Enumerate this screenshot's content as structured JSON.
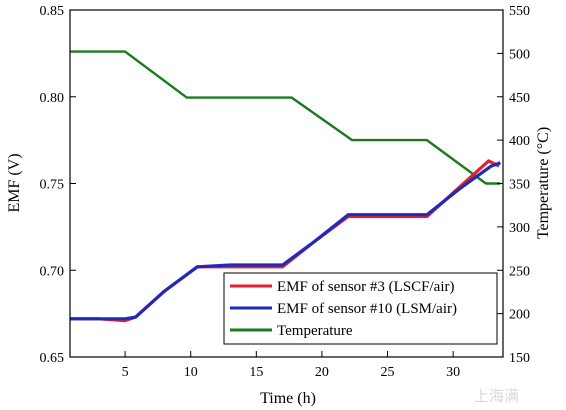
{
  "chart_data": {
    "type": "line",
    "title": "",
    "xlabel": "Time (h)",
    "ylabel": "EMF (V)",
    "y2label": "Temperature (°C)",
    "xlim": [
      0.8,
      33.8
    ],
    "ylim": [
      0.65,
      0.85
    ],
    "y2lim": [
      150,
      550
    ],
    "xticks": [
      5,
      10,
      15,
      20,
      25,
      30
    ],
    "yticks": [
      0.65,
      0.7,
      0.75,
      0.8,
      0.85
    ],
    "y2ticks": [
      150,
      200,
      250,
      300,
      350,
      400,
      450,
      500,
      550
    ],
    "grid": false,
    "legend_position": "bottom-right",
    "series": [
      {
        "name": "EMF of sensor #3 (LSCF/air)",
        "color": "#e8202a",
        "axis": "left",
        "x": [
          0.8,
          3.0,
          5.0,
          5.8,
          8.0,
          10.5,
          13.0,
          15.5,
          17.0,
          19.5,
          22.0,
          24.0,
          26.0,
          28.0,
          30.5,
          32.7,
          33.5
        ],
        "y": [
          0.672,
          0.672,
          0.671,
          0.673,
          0.688,
          0.702,
          0.702,
          0.702,
          0.702,
          0.717,
          0.731,
          0.731,
          0.731,
          0.731,
          0.748,
          0.763,
          0.76
        ]
      },
      {
        "name": "EMF of sensor #10 (LSM/air)",
        "color": "#1f2bb8",
        "axis": "left",
        "x": [
          0.8,
          3.0,
          5.0,
          5.8,
          8.0,
          10.5,
          13.0,
          15.5,
          17.0,
          19.5,
          22.0,
          24.0,
          26.0,
          28.0,
          30.5,
          32.9,
          33.6
        ],
        "y": [
          0.672,
          0.672,
          0.672,
          0.673,
          0.688,
          0.702,
          0.703,
          0.703,
          0.703,
          0.717,
          0.732,
          0.732,
          0.732,
          0.732,
          0.747,
          0.76,
          0.762
        ]
      },
      {
        "name": "Temperature",
        "color": "#1c7a1c",
        "axis": "right",
        "x": [
          0.8,
          5.0,
          9.7,
          17.7,
          22.3,
          28.0,
          32.5,
          33.6
        ],
        "y": [
          502,
          502,
          449,
          449,
          400,
          400,
          350,
          350
        ]
      }
    ]
  },
  "watermark": "上海满"
}
